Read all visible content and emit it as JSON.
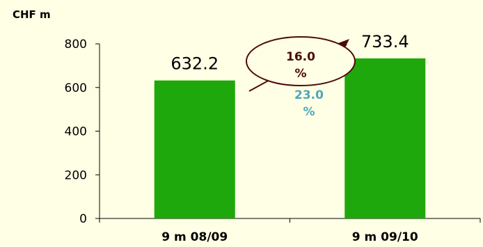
{
  "chart_data": {
    "type": "bar",
    "unit_label": "CHF m",
    "categories": [
      "9 m 08/09",
      "9 m 09/10"
    ],
    "values": [
      632.2,
      733.4
    ],
    "value_labels": [
      "632.2",
      "733.4"
    ],
    "ylim": [
      0,
      800
    ],
    "yticks": [
      0,
      200,
      400,
      600,
      800
    ],
    "bar_color": "#1fa80b",
    "annotations": [
      {
        "text_line1": "16.0",
        "text_line2": "%",
        "color": "#4d0a0a",
        "style": "ellipse-arrow"
      },
      {
        "text_line1": "23.0",
        "text_line2": "%",
        "color": "#4ea6b9"
      }
    ]
  }
}
